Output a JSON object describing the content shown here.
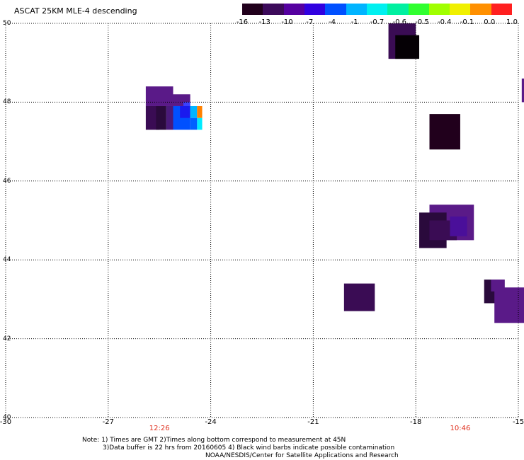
{
  "title": "ASCAT 25KM MLE-4 descending",
  "color_scale": {
    "colors": [
      "#21001c",
      "#3c0a5a",
      "#5500a0",
      "#3000e0",
      "#0050ff",
      "#00b4ff",
      "#00f0f0",
      "#00f0a0",
      "#30ff30",
      "#a0ff00",
      "#f0f000",
      "#ff9000",
      "#ff2020"
    ],
    "labels": [
      "-16",
      "-13",
      "-10",
      "-7",
      "-4",
      "-1",
      "-0.7",
      "-0.6",
      "-0.5",
      "-0.4",
      "-0.1",
      "0.0",
      "1.0"
    ]
  },
  "map": {
    "lon_range": [
      -30,
      -15
    ],
    "lat_range": [
      40,
      50
    ],
    "x_ticks": [
      "-30",
      "-27",
      "-24",
      "-21",
      "-18",
      "-15"
    ],
    "y_ticks": [
      "40",
      "42",
      "44",
      "46",
      "48",
      "50"
    ],
    "gridlines": "dotted",
    "swaths": [
      {
        "lon": [
          -25.9,
          -25.1
        ],
        "lat": [
          47.9,
          48.4
        ],
        "color": "#5a1a88"
      },
      {
        "lon": [
          -25.1,
          -24.6
        ],
        "lat": [
          47.9,
          48.2
        ],
        "color": "#5a1a88"
      },
      {
        "lon": [
          -25.9,
          -25.5
        ],
        "lat": [
          47.3,
          47.9
        ],
        "color": "#3a0c54"
      },
      {
        "lon": [
          -25.6,
          -25.3
        ],
        "lat": [
          47.3,
          47.9
        ],
        "color": "#2a0a3c"
      },
      {
        "lon": [
          -25.3,
          -25.1
        ],
        "lat": [
          47.3,
          47.9
        ],
        "color": "#4a1a7a"
      },
      {
        "lon": [
          -25.1,
          -24.6
        ],
        "lat": [
          47.3,
          47.9
        ],
        "color": "#0050ff"
      },
      {
        "lon": [
          -24.9,
          -24.6
        ],
        "lat": [
          47.6,
          47.9
        ],
        "color": "#1a1aee"
      },
      {
        "lon": [
          -24.8,
          -24.6
        ],
        "lat": [
          47.9,
          48.0
        ],
        "color": "#3a40ff"
      },
      {
        "lon": [
          -24.6,
          -24.4
        ],
        "lat": [
          47.6,
          47.9
        ],
        "color": "#00b4ff"
      },
      {
        "lon": [
          -24.4,
          -24.25
        ],
        "lat": [
          47.6,
          47.9
        ],
        "color": "#ff8000"
      },
      {
        "lon": [
          -24.4,
          -24.25
        ],
        "lat": [
          47.3,
          47.6
        ],
        "color": "#00ebff"
      },
      {
        "lon": [
          -24.6,
          -24.4
        ],
        "lat": [
          47.3,
          47.6
        ],
        "color": "#0060ff"
      },
      {
        "lon": [
          -18.8,
          -18.0
        ],
        "lat": [
          49.1,
          50.0
        ],
        "color": "#3a0c54"
      },
      {
        "lon": [
          -18.6,
          -17.9
        ],
        "lat": [
          49.1,
          49.7
        ],
        "color": "#050005"
      },
      {
        "lon": [
          -14.9,
          -14.2
        ],
        "lat": [
          48.0,
          48.6
        ],
        "color": "#5a1a88"
      },
      {
        "lon": [
          -14.6,
          -13.8
        ],
        "lat": [
          47.3,
          48.2
        ],
        "color": "#5a1a88"
      },
      {
        "lon": [
          -17.6,
          -16.7
        ],
        "lat": [
          46.8,
          47.7
        ],
        "color": "#21001c"
      },
      {
        "lon": [
          -17.6,
          -16.3
        ],
        "lat": [
          44.5,
          45.4
        ],
        "color": "#5a1a88"
      },
      {
        "lon": [
          -17.9,
          -17.1
        ],
        "lat": [
          44.3,
          45.2
        ],
        "color": "#2a0a3c"
      },
      {
        "lon": [
          -17.6,
          -16.8
        ],
        "lat": [
          44.5,
          45.0
        ],
        "color": "#3a0c54"
      },
      {
        "lon": [
          -17.0,
          -16.5
        ],
        "lat": [
          44.6,
          45.1
        ],
        "color": "#4a0f9a"
      },
      {
        "lon": [
          -20.1,
          -19.2
        ],
        "lat": [
          42.7,
          43.4
        ],
        "color": "#3a0c54"
      },
      {
        "lon": [
          -16.0,
          -15.4
        ],
        "lat": [
          42.9,
          43.5
        ],
        "color": "#2a0a3c"
      },
      {
        "lon": [
          -15.7,
          -14.8
        ],
        "lat": [
          42.4,
          43.3
        ],
        "color": "#5a1a88"
      },
      {
        "lon": [
          -15.8,
          -15.4
        ],
        "lat": [
          43.2,
          43.5
        ],
        "color": "#5a1a88"
      }
    ],
    "time_labels": [
      {
        "text": "12:26",
        "lon": -25.5
      },
      {
        "text": "10:46",
        "lon": -16.7
      }
    ]
  },
  "notes": [
    "Note: 1) Times are GMT 2)Times along bottom correspond to measurement at 45N",
    "3)Data buffer is 22 hrs from 20160605 4) Black wind barbs indicate possible contamination",
    "NOAA/NESDIS/Center for Satellite Applications and Research"
  ]
}
